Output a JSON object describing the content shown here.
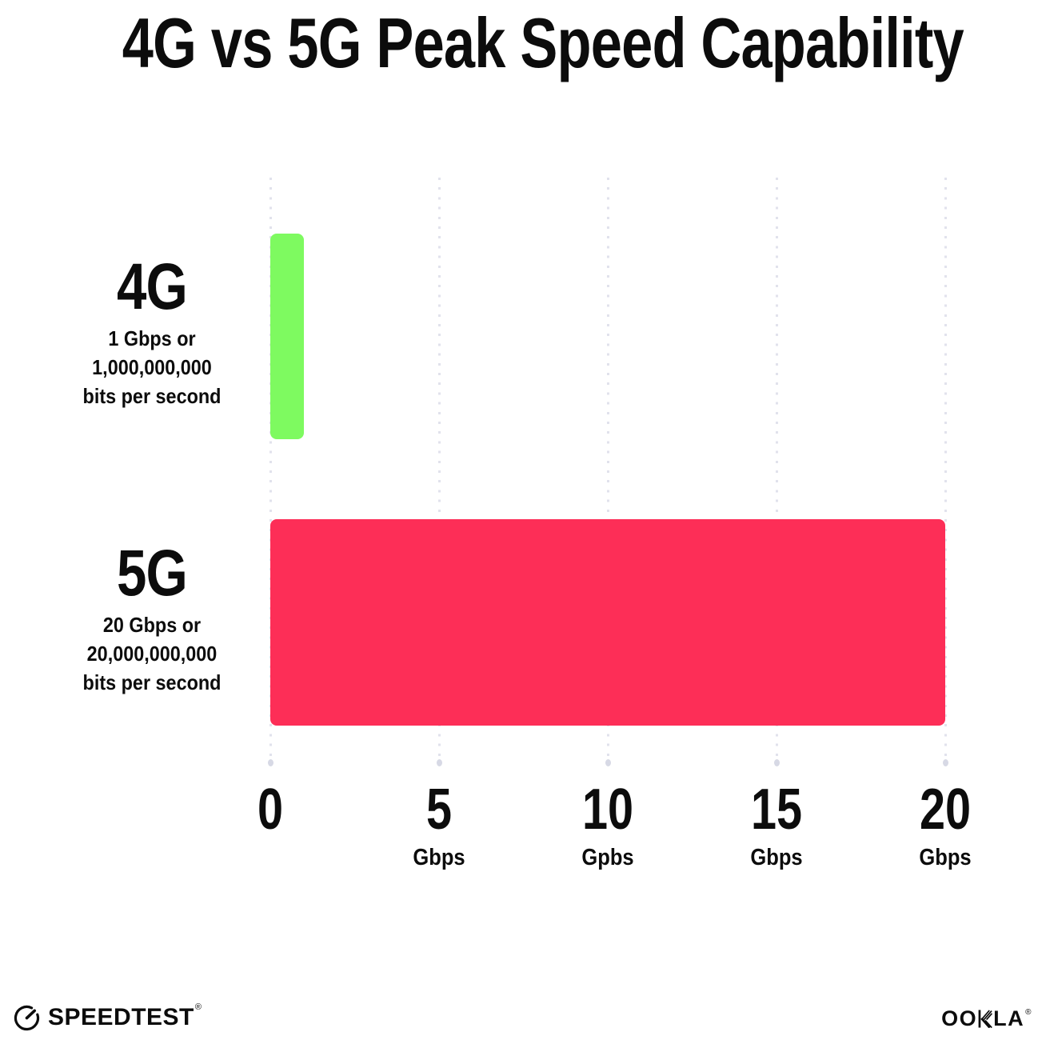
{
  "title": "4G vs 5G Peak Speed Capability",
  "rows": [
    {
      "label": "4G",
      "sub1": "1 Gbps or",
      "sub2": "1,000,000,000",
      "sub3": "bits per second"
    },
    {
      "label": "5G",
      "sub1": "20 Gbps or",
      "sub2": "20,000,000,000",
      "sub3": "bits per second"
    }
  ],
  "axis": {
    "ticks": [
      {
        "value": "0",
        "unit": ""
      },
      {
        "value": "5",
        "unit": "Gbps"
      },
      {
        "value": "10",
        "unit": "Gpbs"
      },
      {
        "value": "15",
        "unit": "Gbps"
      },
      {
        "value": "20",
        "unit": "Gbps"
      }
    ]
  },
  "footer": {
    "speedtest": "SPEEDTEST",
    "speedtest_reg": "®",
    "ookla_oo": "OO",
    "ookla_la": "LA",
    "ookla_reg": "®"
  },
  "colors": {
    "green": "#7efa60",
    "pink": "#fd2e57",
    "grid": "#e1e2ec",
    "grid_dot": "#d7d9e5",
    "text": "#0c0c0c"
  },
  "chart_data": {
    "type": "bar",
    "orientation": "horizontal",
    "title": "4G vs 5G Peak Speed Capability",
    "categories": [
      "4G",
      "5G"
    ],
    "values": [
      1,
      20
    ],
    "bar_colors": [
      "#7efa60",
      "#fd2e57"
    ],
    "category_notes": [
      "1 Gbps or 1,000,000,000 bits per second",
      "20 Gbps or 20,000,000,000 bits per second"
    ],
    "xlabel": "Gbps",
    "ylabel": "",
    "xlim": [
      0,
      20
    ],
    "xticks": [
      0,
      5,
      10,
      15,
      20
    ],
    "xtick_unit_labels": [
      "",
      "Gbps",
      "Gpbs",
      "Gbps",
      "Gbps"
    ],
    "grid": "vertical-dotted",
    "legend": false
  }
}
